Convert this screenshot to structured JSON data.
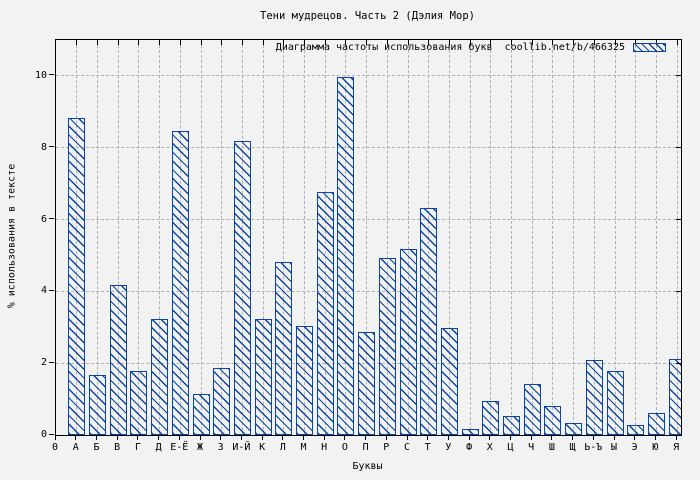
{
  "title": "Тени мудрецов. Часть 2 (Дэлия Мор)",
  "legend": {
    "label": "Диаграмма частоты использования букв  coollib.net/b/466325",
    "swatch": "blue-diagonal-hatch"
  },
  "chart_data": {
    "type": "bar",
    "title": "Тени мудрецов. Часть 2 (Дэлия Мор)",
    "xlabel": "Буквы",
    "ylabel": "% использования в тексте",
    "x_origin_label": "0",
    "categories": [
      "А",
      "Б",
      "В",
      "Г",
      "Д",
      "Е-Ё",
      "Ж",
      "З",
      "И-Й",
      "К",
      "Л",
      "М",
      "Н",
      "О",
      "П",
      "Р",
      "С",
      "Т",
      "У",
      "Ф",
      "Х",
      "Ц",
      "Ч",
      "Ш",
      "Щ",
      "Ь-Ъ",
      "Ы",
      "Э",
      "Ю",
      "Я"
    ],
    "values": [
      8.8,
      1.65,
      4.15,
      1.75,
      3.2,
      8.45,
      1.1,
      1.85,
      8.15,
      3.2,
      4.8,
      3.0,
      6.75,
      9.95,
      2.85,
      4.9,
      5.15,
      6.3,
      2.95,
      0.13,
      0.92,
      0.5,
      1.4,
      0.78,
      0.31,
      2.05,
      1.75,
      0.26,
      0.58,
      2.1
    ],
    "yticks": [
      0,
      2,
      4,
      6,
      8,
      10
    ],
    "ylim": [
      0,
      11
    ],
    "grid": true,
    "legend_position": "top-right",
    "bar_color": "#0a44a4",
    "grid_color": "#b0b0b0",
    "background_color": "#f2f2f2",
    "hatch": "diagonal-backslash"
  }
}
